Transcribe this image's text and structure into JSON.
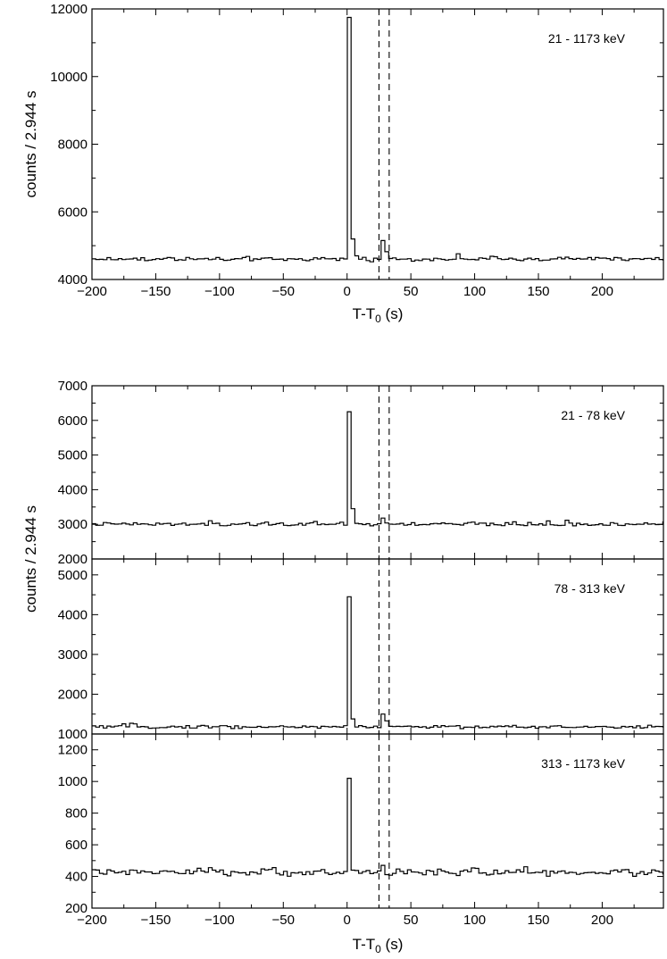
{
  "chart_data": [
    {
      "type": "line",
      "style": "step",
      "band_label": "21 - 1173 keV",
      "xlabel": "T-T",
      "xlabel_sub": "0",
      "xlabel_unit": " (s)",
      "ylabel": "counts /  2.944 s",
      "xlim": [
        -200,
        248
      ],
      "ylim": [
        4000,
        12000
      ],
      "x_ticks": [
        -200,
        -150,
        -100,
        -50,
        0,
        50,
        100,
        150,
        200
      ],
      "y_ticks": [
        4000,
        6000,
        8000,
        10000,
        12000
      ],
      "vlines_dashed": [
        25,
        33
      ],
      "baseline": 4600,
      "spike": [
        {
          "x": 0,
          "y": 11750
        },
        {
          "x": 2.944,
          "y": 5200
        },
        {
          "x": 5.888,
          "y": 4700
        },
        {
          "x": 26.5,
          "y": 5150
        },
        {
          "x": 29.4,
          "y": 4820
        }
      ],
      "noise": 55
    },
    {
      "type": "line",
      "style": "step",
      "band_label": "21 - 78 keV",
      "xlabel": "",
      "ylabel": "counts /  2.944 s",
      "xlim": [
        -200,
        248
      ],
      "ylim": [
        2000,
        7000
      ],
      "x_ticks": [
        -200,
        -150,
        -100,
        -50,
        0,
        50,
        100,
        150,
        200
      ],
      "y_ticks": [
        2000,
        3000,
        4000,
        5000,
        6000,
        7000
      ],
      "vlines_dashed": [
        25,
        33
      ],
      "baseline": 3000,
      "spike": [
        {
          "x": 0,
          "y": 6250
        },
        {
          "x": 2.944,
          "y": 3450
        },
        {
          "x": 26.5,
          "y": 3180
        }
      ],
      "noise": 45
    },
    {
      "type": "line",
      "style": "step",
      "band_label": "78 - 313 keV",
      "xlabel": "",
      "ylabel": "counts /  2.944 s",
      "xlim": [
        -200,
        248
      ],
      "ylim": [
        1000,
        5400
      ],
      "x_ticks": [
        -200,
        -150,
        -100,
        -50,
        0,
        50,
        100,
        150,
        200
      ],
      "y_ticks": [
        1000,
        2000,
        3000,
        4000,
        5000
      ],
      "vlines_dashed": [
        25,
        33
      ],
      "baseline": 1180,
      "spike": [
        {
          "x": 0,
          "y": 4450
        },
        {
          "x": 2.944,
          "y": 1380
        },
        {
          "x": 26.5,
          "y": 1500
        },
        {
          "x": 29.4,
          "y": 1330
        }
      ],
      "noise": 35
    },
    {
      "type": "line",
      "style": "step",
      "band_label": "313 - 1173 keV",
      "xlabel": "T-T",
      "xlabel_sub": "0",
      "xlabel_unit": " (s)",
      "ylabel": "",
      "xlim": [
        -200,
        248
      ],
      "ylim": [
        200,
        1300
      ],
      "x_ticks": [
        -200,
        -150,
        -100,
        -50,
        0,
        50,
        100,
        150,
        200
      ],
      "y_ticks": [
        200,
        400,
        600,
        800,
        1000,
        1200
      ],
      "vlines_dashed": [
        25,
        33
      ],
      "baseline": 425,
      "spike": [
        {
          "x": 0,
          "y": 1020
        },
        {
          "x": 2.944,
          "y": 440
        },
        {
          "x": 26.5,
          "y": 470
        }
      ],
      "noise": 18
    }
  ]
}
